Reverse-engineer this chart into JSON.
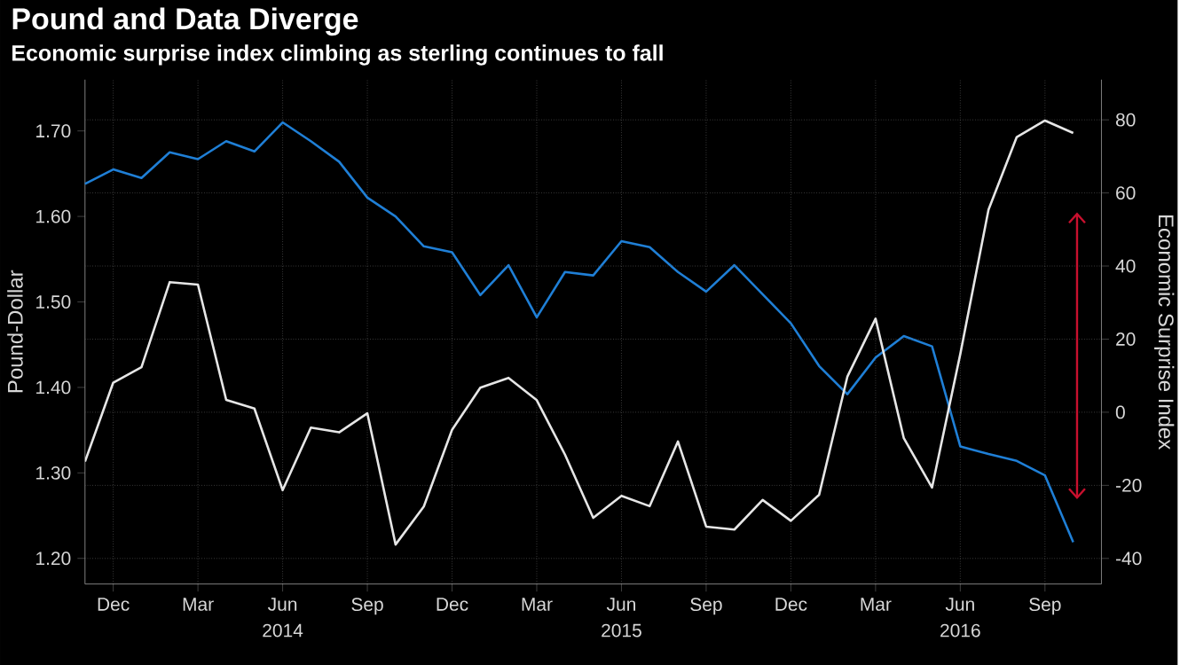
{
  "chart_data": {
    "type": "line",
    "title": "Pound and Data Diverge",
    "subtitle": "Economic surprise index climbing as sterling continues to fall",
    "ylabel": "Pound-Dollar",
    "y2label": "Economic Surprise Index",
    "x": [
      "2013-11",
      "2013-12",
      "2014-01",
      "2014-02",
      "2014-03",
      "2014-04",
      "2014-05",
      "2014-06",
      "2014-07",
      "2014-08",
      "2014-09",
      "2014-10",
      "2014-11",
      "2014-12",
      "2015-01",
      "2015-02",
      "2015-03",
      "2015-04",
      "2015-05",
      "2015-06",
      "2015-07",
      "2015-08",
      "2015-09",
      "2015-10",
      "2015-11",
      "2015-12",
      "2016-01",
      "2016-02",
      "2016-03",
      "2016-04",
      "2016-05",
      "2016-06",
      "2016-07",
      "2016-08",
      "2016-09",
      "2016-10"
    ],
    "series": [
      {
        "color": "#1f7fd6",
        "values": [
          1.638,
          1.655,
          1.645,
          1.675,
          1.667,
          1.688,
          1.676,
          1.71,
          1.688,
          1.664,
          1.622,
          1.6,
          1.565,
          1.558,
          1.508,
          1.543,
          1.482,
          1.535,
          1.531,
          1.571,
          1.564,
          1.535,
          1.512,
          1.543,
          1.509,
          1.475,
          1.425,
          1.392,
          1.435,
          1.46,
          1.448,
          1.331,
          1.322,
          1.314,
          1.297,
          1.219
        ]
      },
      {
        "color": "#e6e6e6",
        "axis": "y2",
        "values": [
          -13.5,
          8.1,
          12.3,
          35.6,
          34.9,
          3.4,
          1.0,
          -21.3,
          -4.2,
          -5.5,
          -0.3,
          -36.2,
          -25.8,
          -4.8,
          6.7,
          9.4,
          3.3,
          -11.6,
          -28.9,
          -22.9,
          -25.7,
          -8.0,
          -31.3,
          -32.1,
          -24.0,
          -29.7,
          -22.6,
          9.7,
          25.6,
          -7.1,
          -20.6,
          15.9,
          55.4,
          75.3,
          79.8,
          76.4
        ]
      }
    ],
    "xlim": [
      "2013-11",
      "2016-11"
    ],
    "xticks": [
      {
        "value": "2013-12",
        "label": "Dec"
      },
      {
        "value": "2014-03",
        "label": "Mar"
      },
      {
        "value": "2014-06",
        "label": "Jun"
      },
      {
        "value": "2014-09",
        "label": "Sep"
      },
      {
        "value": "2014-12",
        "label": "Dec"
      },
      {
        "value": "2015-03",
        "label": "Mar"
      },
      {
        "value": "2015-06",
        "label": "Jun"
      },
      {
        "value": "2015-09",
        "label": "Sep"
      },
      {
        "value": "2015-12",
        "label": "Dec"
      },
      {
        "value": "2016-03",
        "label": "Mar"
      },
      {
        "value": "2016-06",
        "label": "Jun"
      },
      {
        "value": "2016-09",
        "label": "Sep"
      }
    ],
    "ylim": [
      1.17,
      1.76
    ],
    "yticks": [
      {
        "value": 1.2,
        "label": "1.20"
      },
      {
        "value": 1.3,
        "label": "1.30"
      },
      {
        "value": 1.4,
        "label": "1.40"
      },
      {
        "value": 1.5,
        "label": "1.50"
      },
      {
        "value": 1.6,
        "label": "1.60"
      },
      {
        "value": 1.7,
        "label": "1.70"
      }
    ],
    "y2lim": [
      -47,
      91
    ],
    "y2ticks": [
      -40,
      -20,
      0,
      20,
      40,
      60,
      80
    ],
    "annotations": [
      "2014",
      "2015",
      "2016"
    ],
    "grid": true,
    "marker": "none",
    "line_style": "solid"
  }
}
